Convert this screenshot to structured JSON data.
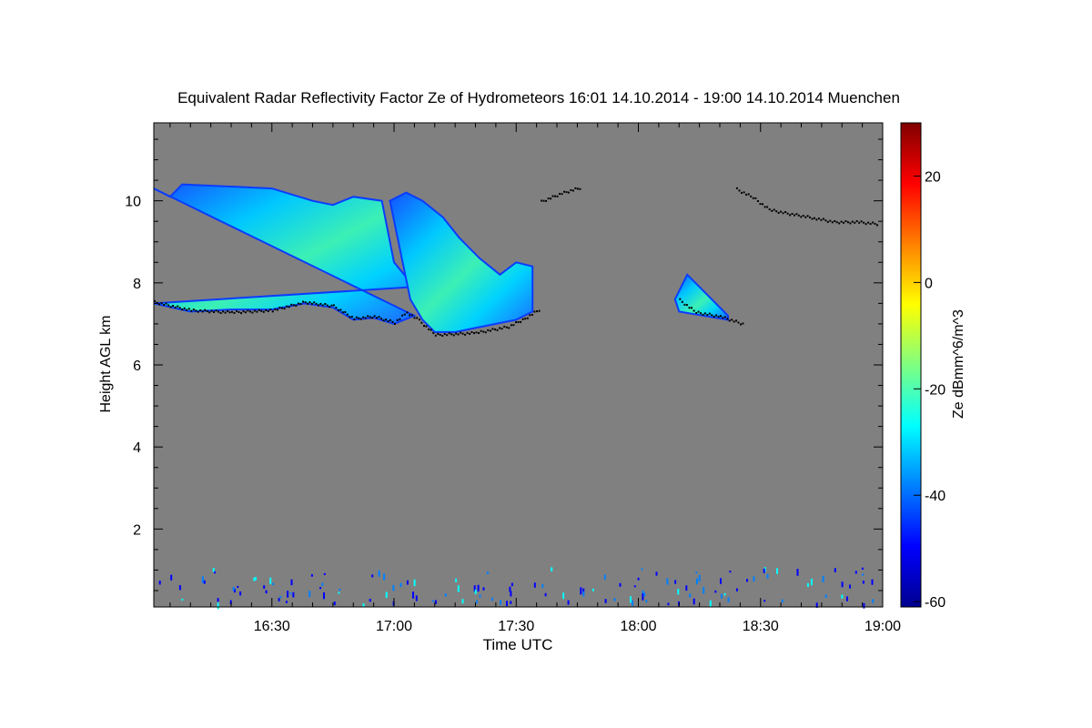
{
  "chart_data": {
    "type": "heatmap",
    "title": "Equivalent Radar Reflectivity Factor Ze of Hydrometeors   16:01 14.10.2014 - 19:00 14.10.2014 Muenchen",
    "xlabel": "Time UTC",
    "ylabel": "Height AGL km",
    "colorbar_label": "Ze dBmm^6/m^3",
    "x_range": [
      "16:01",
      "19:00"
    ],
    "y_range_km": [
      0.1,
      11.9
    ],
    "x_ticks": [
      "16:30",
      "17:00",
      "17:30",
      "18:00",
      "18:30",
      "19:00"
    ],
    "y_ticks": [
      2,
      4,
      6,
      8,
      10
    ],
    "colorbar_range": [
      -61,
      30
    ],
    "colorbar_ticks": [
      20,
      0,
      -20,
      -40,
      -60
    ],
    "background_color": "#808080",
    "colormap": [
      "#00008f",
      "#0000ff",
      "#0080ff",
      "#00ffff",
      "#80ff80",
      "#ffff00",
      "#ff8000",
      "#ff0000",
      "#800000"
    ],
    "clouds": [
      {
        "name": "cirrus-1",
        "top": [
          [
            "16:01",
            10.3
          ],
          [
            "16:05",
            10.1
          ],
          [
            "16:08",
            10.4
          ],
          [
            "16:30",
            10.3
          ],
          [
            "16:40",
            10.0
          ],
          [
            "16:45",
            9.9
          ],
          [
            "16:50",
            10.1
          ],
          [
            "16:57",
            10.0
          ],
          [
            "17:00",
            8.5
          ],
          [
            "17:05",
            7.9
          ]
        ],
        "base": [
          [
            "16:01",
            7.5
          ],
          [
            "16:10",
            7.3
          ],
          [
            "16:20",
            7.35
          ],
          [
            "16:30",
            7.35
          ],
          [
            "16:38",
            7.5
          ],
          [
            "16:45",
            7.4
          ],
          [
            "16:50",
            7.1
          ],
          [
            "16:55",
            7.15
          ],
          [
            "17:00",
            7.0
          ],
          [
            "17:05",
            7.2
          ]
        ]
      },
      {
        "name": "cirrus-2",
        "top": [
          [
            "16:59",
            10.0
          ],
          [
            "17:03",
            10.2
          ],
          [
            "17:07",
            10.0
          ],
          [
            "17:12",
            9.6
          ],
          [
            "17:16",
            9.1
          ],
          [
            "17:21",
            8.6
          ],
          [
            "17:26",
            8.2
          ],
          [
            "17:30",
            8.5
          ],
          [
            "17:34",
            8.4
          ]
        ],
        "base": [
          [
            "17:34",
            7.3
          ],
          [
            "17:30",
            7.1
          ],
          [
            "17:25",
            7.0
          ],
          [
            "17:20",
            6.9
          ],
          [
            "17:15",
            6.8
          ],
          [
            "17:10",
            6.8
          ],
          [
            "17:07",
            7.1
          ],
          [
            "17:04",
            7.6
          ]
        ]
      },
      {
        "name": "cirrus-3",
        "top": [
          [
            "18:09",
            7.6
          ],
          [
            "18:12",
            8.2
          ],
          [
            "18:16",
            7.8
          ],
          [
            "18:22",
            7.2
          ]
        ],
        "base": [
          [
            "18:22",
            7.1
          ],
          [
            "18:16",
            7.2
          ],
          [
            "18:10",
            7.3
          ]
        ]
      }
    ],
    "base_dots": [
      {
        "name": "base-1",
        "points": [
          [
            "16:01",
            7.55
          ],
          [
            "16:10",
            7.35
          ],
          [
            "16:20",
            7.3
          ],
          [
            "16:30",
            7.35
          ],
          [
            "16:38",
            7.55
          ],
          [
            "16:45",
            7.45
          ],
          [
            "16:50",
            7.15
          ],
          [
            "16:55",
            7.2
          ],
          [
            "17:00",
            7.05
          ],
          [
            "17:03",
            7.3
          ],
          [
            "17:06",
            7.1
          ],
          [
            "17:10",
            6.75
          ],
          [
            "17:20",
            6.8
          ],
          [
            "17:28",
            6.95
          ],
          [
            "17:32",
            7.15
          ],
          [
            "17:36",
            7.4
          ]
        ]
      },
      {
        "name": "top-1",
        "points": [
          [
            "17:36",
            10.0
          ],
          [
            "17:41",
            10.2
          ],
          [
            "17:46",
            10.35
          ]
        ]
      },
      {
        "name": "base-2",
        "points": [
          [
            "18:10",
            7.6
          ],
          [
            "18:14",
            7.3
          ],
          [
            "18:20",
            7.2
          ],
          [
            "18:26",
            7.0
          ]
        ]
      },
      {
        "name": "top-2",
        "points": [
          [
            "18:24",
            10.3
          ],
          [
            "18:28",
            10.1
          ],
          [
            "18:32",
            9.8
          ],
          [
            "18:37",
            9.7
          ],
          [
            "18:43",
            9.6
          ],
          [
            "18:48",
            9.5
          ],
          [
            "18:54",
            9.5
          ],
          [
            "18:59",
            9.45
          ]
        ]
      }
    ]
  }
}
